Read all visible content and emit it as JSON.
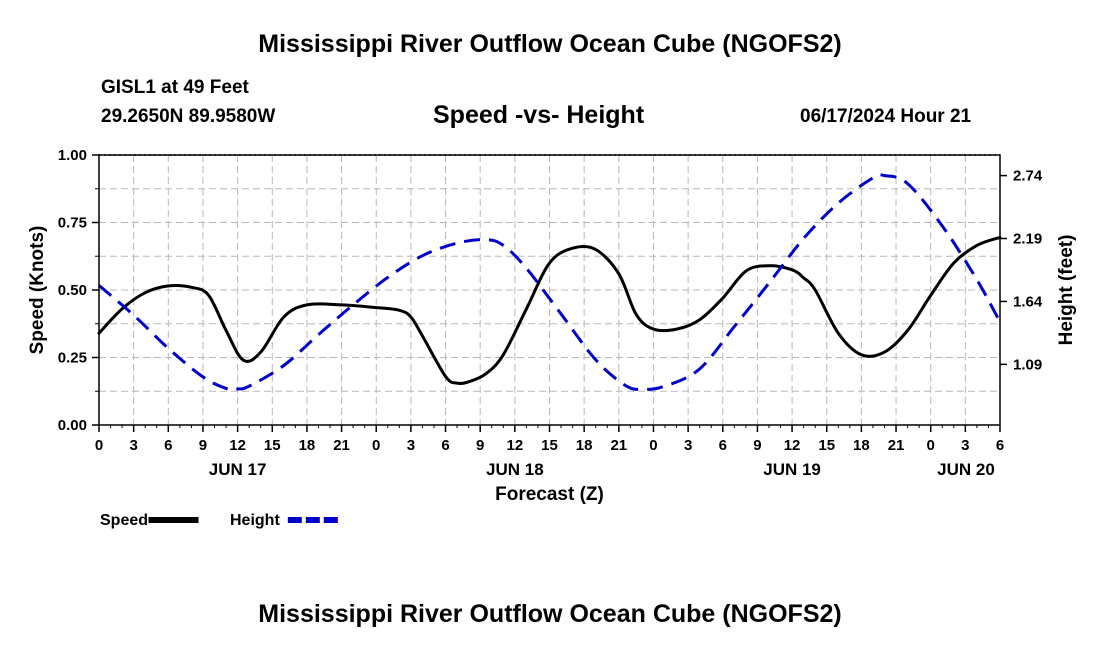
{
  "header": {
    "title": "Mississippi River Outflow Ocean Cube (NGOFS2)",
    "station": "GISL1 at 49 Feet",
    "coords": "29.2650N  89.9580W",
    "subtitle": "Speed -vs- Height",
    "datetime": "06/17/2024 Hour 21"
  },
  "footer": {
    "title": "Mississippi River Outflow Ocean Cube (NGOFS2)"
  },
  "chart_data": {
    "type": "line",
    "title": "Speed -vs- Height",
    "xlabel": "Forecast (Z)",
    "ylabel": "Speed (Knots)",
    "y2label": "Height (feet)",
    "xlim": [
      0,
      78
    ],
    "ylim": [
      0,
      1
    ],
    "y2lim": [
      0.56,
      2.92
    ],
    "grid": true,
    "x_ticks": [
      0,
      3,
      6,
      9,
      12,
      15,
      18,
      21,
      24,
      27,
      30,
      33,
      36,
      39,
      42,
      45,
      48,
      51,
      54,
      57,
      60,
      63,
      66,
      69,
      72,
      75,
      78
    ],
    "x_tick_labels": [
      "0",
      "3",
      "6",
      "9",
      "12",
      "15",
      "18",
      "21",
      "0",
      "3",
      "6",
      "9",
      "12",
      "15",
      "18",
      "21",
      "0",
      "3",
      "6",
      "9",
      "12",
      "15",
      "18",
      "21",
      "0",
      "3",
      "6"
    ],
    "date_labels": [
      {
        "x": 12,
        "label": "JUN 17"
      },
      {
        "x": 36,
        "label": "JUN 18"
      },
      {
        "x": 60,
        "label": "JUN 19"
      },
      {
        "x": 78,
        "label": "JUN 20"
      }
    ],
    "y_ticks": [
      0.0,
      0.25,
      0.5,
      0.75,
      1.0
    ],
    "y_tick_labels": [
      "0.00",
      "0.25",
      "0.50",
      "0.75",
      "1.00"
    ],
    "y2_ticks": [
      1.09,
      1.64,
      2.19,
      2.74
    ],
    "y2_tick_labels": [
      "1.09",
      "1.64",
      "2.19",
      "2.74"
    ],
    "series": [
      {
        "name": "Speed",
        "axis": "left",
        "color": "#000000",
        "style": "solid",
        "x": [
          0,
          2,
          4,
          6,
          8,
          9.5,
          11,
          12.5,
          14,
          16,
          18,
          21,
          24,
          26,
          27,
          28,
          30,
          31,
          32,
          33.5,
          35,
          37,
          39,
          41,
          43,
          45,
          46.5,
          48,
          50,
          52,
          54,
          56,
          58,
          60,
          61,
          62,
          64,
          66,
          68,
          70,
          72,
          74,
          76,
          78
        ],
        "values": [
          0.34,
          0.43,
          0.49,
          0.515,
          0.51,
          0.48,
          0.35,
          0.24,
          0.27,
          0.4,
          0.445,
          0.445,
          0.435,
          0.425,
          0.4,
          0.33,
          0.18,
          0.155,
          0.16,
          0.19,
          0.26,
          0.43,
          0.6,
          0.655,
          0.65,
          0.56,
          0.41,
          0.355,
          0.355,
          0.39,
          0.47,
          0.57,
          0.59,
          0.575,
          0.545,
          0.5,
          0.34,
          0.26,
          0.27,
          0.35,
          0.48,
          0.6,
          0.665,
          0.695
        ]
      },
      {
        "name": "Height",
        "axis": "right",
        "color": "#0000cc",
        "style": "dashed",
        "x": [
          0,
          3,
          6,
          9,
          11,
          12,
          13,
          16,
          19,
          22,
          25,
          28,
          31,
          33.5,
          35,
          37,
          40,
          43,
          45.5,
          47,
          49,
          52,
          55,
          58,
          61,
          64,
          67,
          68,
          70,
          73,
          76,
          78
        ],
        "values": [
          1.78,
          1.52,
          1.23,
          0.98,
          0.88,
          0.875,
          0.9,
          1.08,
          1.35,
          1.61,
          1.85,
          2.04,
          2.15,
          2.18,
          2.13,
          1.93,
          1.53,
          1.13,
          0.91,
          0.87,
          0.9,
          1.05,
          1.42,
          1.8,
          2.19,
          2.5,
          2.72,
          2.74,
          2.67,
          2.3,
          1.83,
          1.46
        ]
      }
    ],
    "legend": [
      {
        "label": "Speed",
        "color": "#000000",
        "style": "solid"
      },
      {
        "label": "Height",
        "color": "#0000cc",
        "style": "dashed"
      }
    ],
    "legend_placement": "bottom-left"
  }
}
